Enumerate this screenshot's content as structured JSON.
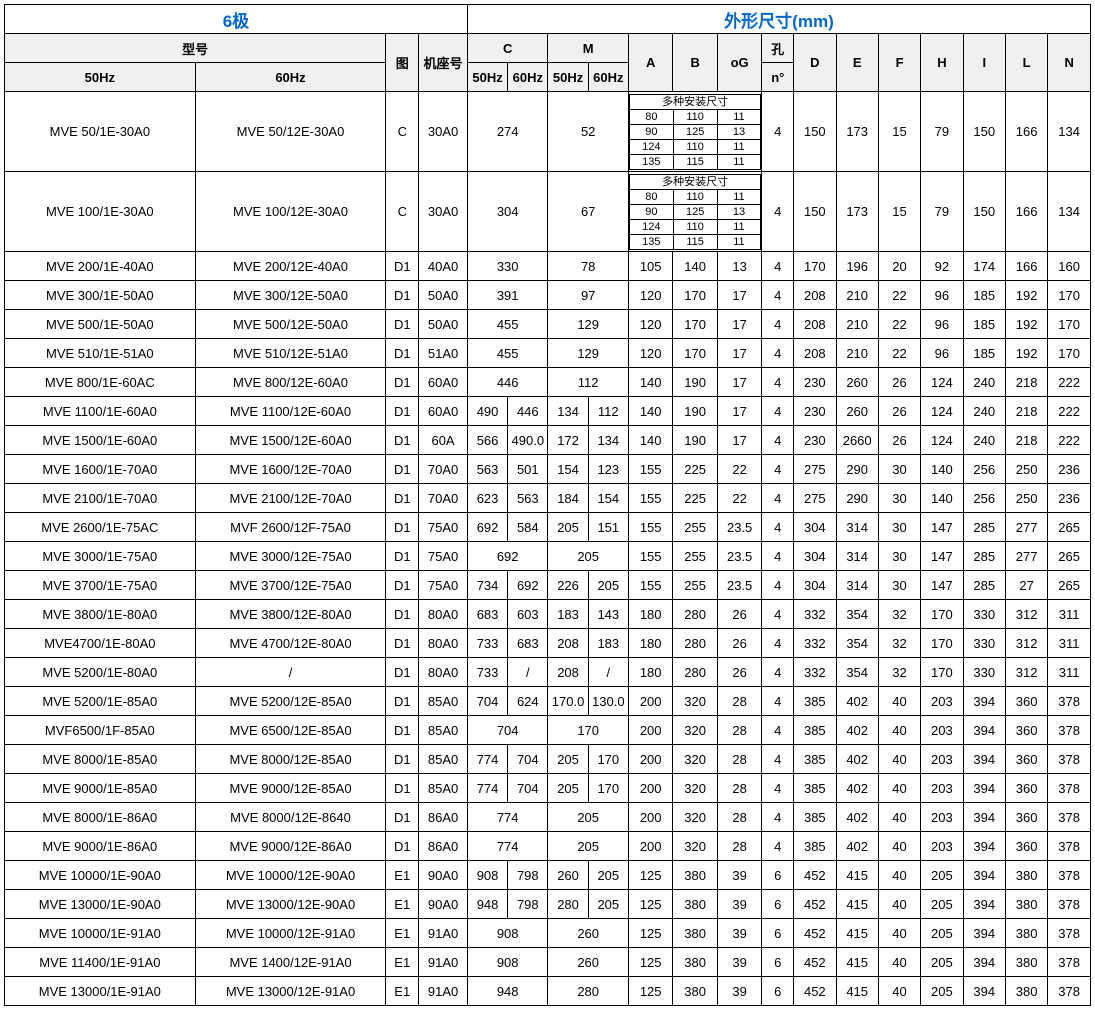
{
  "header": {
    "left": "6极",
    "right": "外形尺寸(mm)",
    "model": "型号",
    "tu": "图",
    "jizuo": "机座号",
    "C": "C",
    "M": "M",
    "A": "A",
    "B": "B",
    "oG": "oG",
    "kong_top": "孔",
    "kong_bot": "n°",
    "D": "D",
    "E": "E",
    "F": "F",
    "H": "H",
    "I": "I",
    "L": "L",
    "N": "N",
    "hz50": "50Hz",
    "hz60": "60Hz",
    "multi": "多种安装尺寸"
  },
  "multi_rows": [
    [
      "80",
      "110",
      "11"
    ],
    [
      "90",
      "125",
      "13"
    ],
    [
      "124",
      "110",
      "11"
    ],
    [
      "135",
      "115",
      "11"
    ]
  ],
  "big_rows": [
    {
      "m50": "MVE 50/1E-30A0",
      "m60": "MVE 50/12E-30A0",
      "tu": "C",
      "ji": "30A0",
      "C": "274",
      "M": "52",
      "kong": "4",
      "D": "150",
      "E": "173",
      "F": "15",
      "H": "79",
      "I": "150",
      "L": "166",
      "N": "134"
    },
    {
      "m50": "MVE 100/1E-30A0",
      "m60": "MVE 100/12E-30A0",
      "tu": "C",
      "ji": "30A0",
      "C": "304",
      "M": "67",
      "kong": "4",
      "D": "150",
      "E": "173",
      "F": "15",
      "H": "79",
      "I": "150",
      "L": "166",
      "N": "134"
    }
  ],
  "rows": [
    {
      "m50": "MVE 200/1E-40A0",
      "m60": "MVE 200/12E-40A0",
      "tu": "D1",
      "ji": "40A0",
      "c50": "330",
      "c60": "",
      "m_50": "78",
      "m_60": "",
      "A": "105",
      "B": "140",
      "oG": "13",
      "kong": "4",
      "D": "170",
      "E": "196",
      "F": "20",
      "H": "92",
      "I": "174",
      "L": "166",
      "N": "160",
      "Cspan": true,
      "Mspan": true
    },
    {
      "m50": "MVE 300/1E-50A0",
      "m60": "MVE 300/12E-50A0",
      "tu": "D1",
      "ji": "50A0",
      "c50": "391",
      "c60": "",
      "m_50": "97",
      "m_60": "",
      "A": "120",
      "B": "170",
      "oG": "17",
      "kong": "4",
      "D": "208",
      "E": "210",
      "F": "22",
      "H": "96",
      "I": "185",
      "L": "192",
      "N": "170",
      "Cspan": true,
      "Mspan": true
    },
    {
      "m50": "MVE 500/1E-50A0",
      "m60": "MVE 500/12E-50A0",
      "tu": "D1",
      "ji": "50A0",
      "c50": "455",
      "c60": "",
      "m_50": "129",
      "m_60": "",
      "A": "120",
      "B": "170",
      "oG": "17",
      "kong": "4",
      "D": "208",
      "E": "210",
      "F": "22",
      "H": "96",
      "I": "185",
      "L": "192",
      "N": "170",
      "Cspan": true,
      "Mspan": true
    },
    {
      "m50": "MVE 510/1E-51A0",
      "m60": "MVE 510/12E-51A0",
      "tu": "D1",
      "ji": "51A0",
      "c50": "455",
      "c60": "",
      "m_50": "129",
      "m_60": "",
      "A": "120",
      "B": "170",
      "oG": "17",
      "kong": "4",
      "D": "208",
      "E": "210",
      "F": "22",
      "H": "96",
      "I": "185",
      "L": "192",
      "N": "170",
      "Cspan": true,
      "Mspan": true
    },
    {
      "m50": "MVE 800/1E-60AC",
      "m60": "MVE 800/12E-60A0",
      "tu": "D1",
      "ji": "60A0",
      "c50": "446",
      "c60": "",
      "m_50": "112",
      "m_60": "",
      "A": "140",
      "B": "190",
      "oG": "17",
      "kong": "4",
      "D": "230",
      "E": "260",
      "F": "26",
      "H": "124",
      "I": "240",
      "L": "218",
      "N": "222",
      "Cspan": true,
      "Mspan": true
    },
    {
      "m50": "MVE 1100/1E-60A0",
      "m60": "MVE 1100/12E-60A0",
      "tu": "D1",
      "ji": "60A0",
      "c50": "490",
      "c60": "446",
      "m_50": "134",
      "m_60": "112",
      "A": "140",
      "B": "190",
      "oG": "17",
      "kong": "4",
      "D": "230",
      "E": "260",
      "F": "26",
      "H": "124",
      "I": "240",
      "L": "218",
      "N": "222"
    },
    {
      "m50": "MVE 1500/1E-60A0",
      "m60": "MVE 1500/12E-60A0",
      "tu": "D1",
      "ji": "60A",
      "c50": "566",
      "c60": "490.0",
      "m_50": "172",
      "m_60": "134",
      "A": "140",
      "B": "190",
      "oG": "17",
      "kong": "4",
      "D": "230",
      "E": "2660",
      "F": "26",
      "H": "124",
      "I": "240",
      "L": "218",
      "N": "222"
    },
    {
      "m50": "MVE 1600/1E-70A0",
      "m60": "MVE 1600/12E-70A0",
      "tu": "D1",
      "ji": "70A0",
      "c50": "563",
      "c60": "501",
      "m_50": "154",
      "m_60": "123",
      "A": "155",
      "B": "225",
      "oG": "22",
      "kong": "4",
      "D": "275",
      "E": "290",
      "F": "30",
      "H": "140",
      "I": "256",
      "L": "250",
      "N": "236"
    },
    {
      "m50": "MVE 2100/1E-70A0",
      "m60": "MVE 2100/12E-70A0",
      "tu": "D1",
      "ji": "70A0",
      "c50": "623",
      "c60": "563",
      "m_50": "184",
      "m_60": "154",
      "A": "155",
      "B": "225",
      "oG": "22",
      "kong": "4",
      "D": "275",
      "E": "290",
      "F": "30",
      "H": "140",
      "I": "256",
      "L": "250",
      "N": "236"
    },
    {
      "m50": "MVE 2600/1E-75AC",
      "m60": "MVF 2600/12F-75A0",
      "tu": "D1",
      "ji": "75A0",
      "c50": "692",
      "c60": "584",
      "m_50": "205",
      "m_60": "151",
      "A": "155",
      "B": "255",
      "oG": "23.5",
      "kong": "4",
      "D": "304",
      "E": "314",
      "F": "30",
      "H": "147",
      "I": "285",
      "L": "277",
      "N": "265"
    },
    {
      "m50": "MVE 3000/1E-75A0",
      "m60": "MVE 3000/12E-75A0",
      "tu": "D1",
      "ji": "75A0",
      "c50": "692",
      "c60": "",
      "m_50": "205",
      "m_60": "",
      "A": "155",
      "B": "255",
      "oG": "23.5",
      "kong": "4",
      "D": "304",
      "E": "314",
      "F": "30",
      "H": "147",
      "I": "285",
      "L": "277",
      "N": "265",
      "Cspan": true,
      "Mspan": true
    },
    {
      "m50": "MVE 3700/1E-75A0",
      "m60": "MVE 3700/12E-75A0",
      "tu": "D1",
      "ji": "75A0",
      "c50": "734",
      "c60": "692",
      "m_50": "226",
      "m_60": "205",
      "A": "155",
      "B": "255",
      "oG": "23.5",
      "kong": "4",
      "D": "304",
      "E": "314",
      "F": "30",
      "H": "147",
      "I": "285",
      "L": "27",
      "N": "265"
    },
    {
      "m50": "MVE 3800/1E-80A0",
      "m60": "MVE 3800/12E-80A0",
      "tu": "D1",
      "ji": "80A0",
      "c50": "683",
      "c60": "603",
      "m_50": "183",
      "m_60": "143",
      "A": "180",
      "B": "280",
      "oG": "26",
      "kong": "4",
      "D": "332",
      "E": "354",
      "F": "32",
      "H": "170",
      "I": "330",
      "L": "312",
      "N": "311"
    },
    {
      "m50": "MVE4700/1E-80A0",
      "m60": "MVE 4700/12E-80A0",
      "tu": "D1",
      "ji": "80A0",
      "c50": "733",
      "c60": "683",
      "m_50": "208",
      "m_60": "183",
      "A": "180",
      "B": "280",
      "oG": "26",
      "kong": "4",
      "D": "332",
      "E": "354",
      "F": "32",
      "H": "170",
      "I": "330",
      "L": "312",
      "N": "311"
    },
    {
      "m50": "MVE 5200/1E-80A0",
      "m60": "/",
      "tu": "D1",
      "ji": "80A0",
      "c50": "733",
      "c60": "/",
      "m_50": "208",
      "m_60": "/",
      "A": "180",
      "B": "280",
      "oG": "26",
      "kong": "4",
      "D": "332",
      "E": "354",
      "F": "32",
      "H": "170",
      "I": "330",
      "L": "312",
      "N": "311"
    },
    {
      "m50": "MVE 5200/1E-85A0",
      "m60": "MVE 5200/12E-85A0",
      "tu": "D1",
      "ji": "85A0",
      "c50": "704",
      "c60": "624",
      "m_50": "170.0",
      "m_60": "130.0",
      "A": "200",
      "B": "320",
      "oG": "28",
      "kong": "4",
      "D": "385",
      "E": "402",
      "F": "40",
      "H": "203",
      "I": "394",
      "L": "360",
      "N": "378"
    },
    {
      "m50": "MVF6500/1F-85A0",
      "m60": "MVE 6500/12E-85A0",
      "tu": "D1",
      "ji": "85A0",
      "c50": "704",
      "c60": "",
      "m_50": "170",
      "m_60": "",
      "A": "200",
      "B": "320",
      "oG": "28",
      "kong": "4",
      "D": "385",
      "E": "402",
      "F": "40",
      "H": "203",
      "I": "394",
      "L": "360",
      "N": "378",
      "Cspan": true,
      "Mspan": true
    },
    {
      "m50": "MVE 8000/1E-85A0",
      "m60": "MVE 8000/12E-85A0",
      "tu": "D1",
      "ji": "85A0",
      "c50": "774",
      "c60": "704",
      "m_50": "205",
      "m_60": "170",
      "A": "200",
      "B": "320",
      "oG": "28",
      "kong": "4",
      "D": "385",
      "E": "402",
      "F": "40",
      "H": "203",
      "I": "394",
      "L": "360",
      "N": "378"
    },
    {
      "m50": "MVE 9000/1E-85A0",
      "m60": "MVE 9000/12E-85A0",
      "tu": "D1",
      "ji": "85A0",
      "c50": "774",
      "c60": "704",
      "m_50": "205",
      "m_60": "170",
      "A": "200",
      "B": "320",
      "oG": "28",
      "kong": "4",
      "D": "385",
      "E": "402",
      "F": "40",
      "H": "203",
      "I": "394",
      "L": "360",
      "N": "378"
    },
    {
      "m50": "MVE 8000/1E-86A0",
      "m60": "MVE 8000/12E-8640",
      "tu": "D1",
      "ji": "86A0",
      "c50": "774",
      "c60": "",
      "m_50": "205",
      "m_60": "",
      "A": "200",
      "B": "320",
      "oG": "28",
      "kong": "4",
      "D": "385",
      "E": "402",
      "F": "40",
      "H": "203",
      "I": "394",
      "L": "360",
      "N": "378",
      "Cspan": true,
      "Mspan": true
    },
    {
      "m50": "MVE 9000/1E-86A0",
      "m60": "MVE 9000/12E-86A0",
      "tu": "D1",
      "ji": "86A0",
      "c50": "774",
      "c60": "",
      "m_50": "205",
      "m_60": "",
      "A": "200",
      "B": "320",
      "oG": "28",
      "kong": "4",
      "D": "385",
      "E": "402",
      "F": "40",
      "H": "203",
      "I": "394",
      "L": "360",
      "N": "378",
      "Cspan": true,
      "Mspan": true
    },
    {
      "m50": "MVE 10000/1E-90A0",
      "m60": "MVE 10000/12E-90A0",
      "tu": "E1",
      "ji": "90A0",
      "c50": "908",
      "c60": "798",
      "m_50": "260",
      "m_60": "205",
      "A": "125",
      "B": "380",
      "oG": "39",
      "kong": "6",
      "D": "452",
      "E": "415",
      "F": "40",
      "H": "205",
      "I": "394",
      "L": "380",
      "N": "378"
    },
    {
      "m50": "MVE 13000/1E-90A0",
      "m60": "MVE 13000/12E-90A0",
      "tu": "E1",
      "ji": "90A0",
      "c50": "948",
      "c60": "798",
      "m_50": "280",
      "m_60": "205",
      "A": "125",
      "B": "380",
      "oG": "39",
      "kong": "6",
      "D": "452",
      "E": "415",
      "F": "40",
      "H": "205",
      "I": "394",
      "L": "380",
      "N": "378"
    },
    {
      "m50": "MVE 10000/1E-91A0",
      "m60": "MVE 10000/12E-91A0",
      "tu": "E1",
      "ji": "91A0",
      "c50": "908",
      "c60": "",
      "m_50": "260",
      "m_60": "",
      "A": "125",
      "B": "380",
      "oG": "39",
      "kong": "6",
      "D": "452",
      "E": "415",
      "F": "40",
      "H": "205",
      "I": "394",
      "L": "380",
      "N": "378",
      "Cspan": true,
      "Mspan": true
    },
    {
      "m50": "MVE 11400/1E-91A0",
      "m60": "MVE 1400/12E-91A0",
      "tu": "E1",
      "ji": "91A0",
      "c50": "908",
      "c60": "",
      "m_50": "260",
      "m_60": "",
      "A": "125",
      "B": "380",
      "oG": "39",
      "kong": "6",
      "D": "452",
      "E": "415",
      "F": "40",
      "H": "205",
      "I": "394",
      "L": "380",
      "N": "378",
      "Cspan": true,
      "Mspan": true
    },
    {
      "m50": "MVE 13000/1E-91A0",
      "m60": "MVE 13000/12E-91A0",
      "tu": "E1",
      "ji": "91A0",
      "c50": "948",
      "c60": "",
      "m_50": "280",
      "m_60": "",
      "A": "125",
      "B": "380",
      "oG": "39",
      "kong": "6",
      "D": "452",
      "E": "415",
      "F": "40",
      "H": "205",
      "I": "394",
      "L": "380",
      "N": "378",
      "Cspan": true,
      "Mspan": true
    }
  ]
}
